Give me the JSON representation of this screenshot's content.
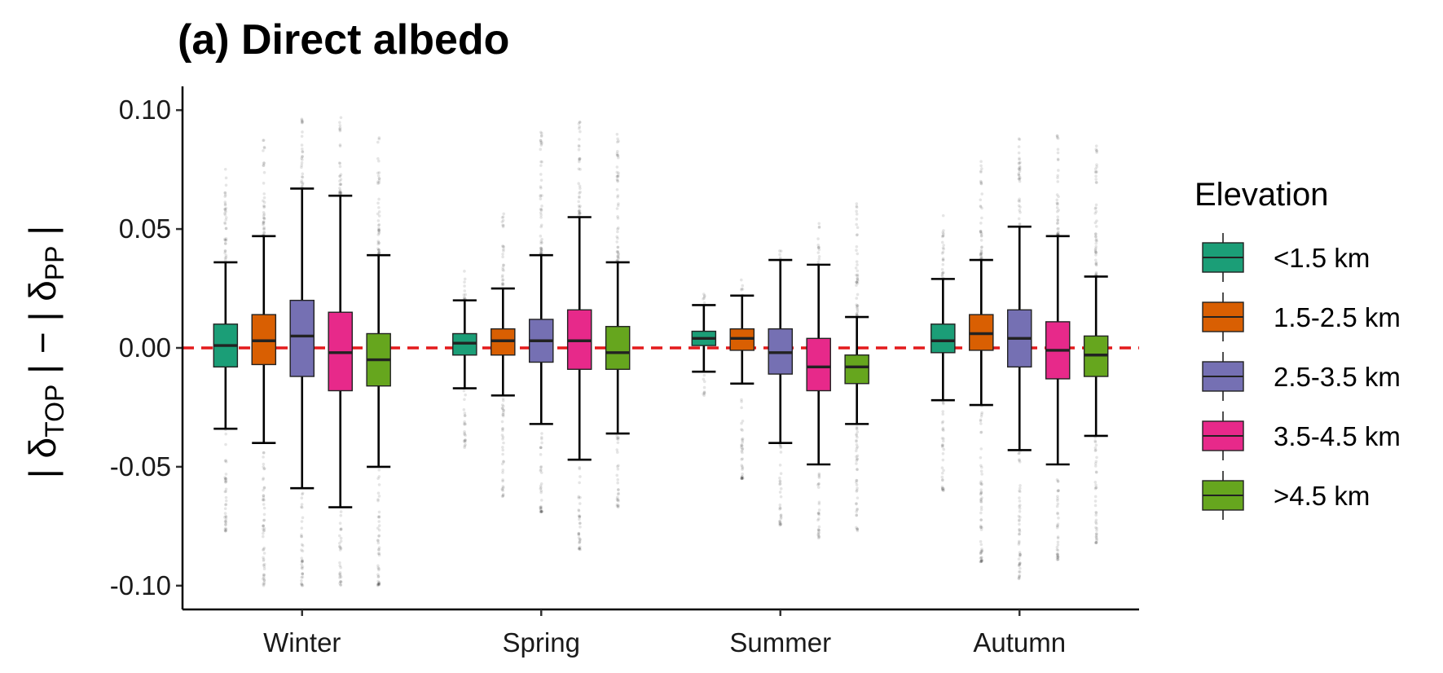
{
  "chart_data": {
    "type": "boxplot",
    "title": "(a) Direct albedo",
    "ylabel": {
      "prefix": "| δ",
      "sub1": "TOP",
      "middle": " | − | δ",
      "sub2": "PP",
      "suffix": " |"
    },
    "xlabel": "",
    "ylim": [
      -0.11,
      0.11
    ],
    "y_ticks": [
      -0.1,
      -0.05,
      0.0,
      0.05,
      0.1
    ],
    "y_tick_labels": [
      "-0.10",
      "-0.05",
      "0.00",
      "0.05",
      "0.10"
    ],
    "reference_line": {
      "y": 0,
      "color": "#e31a1c",
      "style": "dashed"
    },
    "categories": [
      "Winter",
      "Spring",
      "Summer",
      "Autumn"
    ],
    "legend": {
      "title": "Elevation",
      "position": "right"
    },
    "series": [
      {
        "name": "<1.5 km",
        "color": "#1b9e77",
        "boxes": [
          {
            "lower_whisker": -0.034,
            "q1": -0.008,
            "median": 0.001,
            "q3": 0.01,
            "upper_whisker": 0.036,
            "outlier_min": -0.077,
            "outlier_max": 0.077
          },
          {
            "lower_whisker": -0.017,
            "q1": -0.003,
            "median": 0.002,
            "q3": 0.006,
            "upper_whisker": 0.02,
            "outlier_min": -0.042,
            "outlier_max": 0.034
          },
          {
            "lower_whisker": -0.01,
            "q1": 0.001,
            "median": 0.004,
            "q3": 0.007,
            "upper_whisker": 0.018,
            "outlier_min": -0.02,
            "outlier_max": 0.025
          },
          {
            "lower_whisker": -0.022,
            "q1": -0.002,
            "median": 0.003,
            "q3": 0.01,
            "upper_whisker": 0.029,
            "outlier_min": -0.06,
            "outlier_max": 0.057
          }
        ]
      },
      {
        "name": "1.5-2.5 km",
        "color": "#d95f02",
        "boxes": [
          {
            "lower_whisker": -0.04,
            "q1": -0.007,
            "median": 0.003,
            "q3": 0.014,
            "upper_whisker": 0.047,
            "outlier_min": -0.1,
            "outlier_max": 0.09
          },
          {
            "lower_whisker": -0.02,
            "q1": -0.003,
            "median": 0.003,
            "q3": 0.008,
            "upper_whisker": 0.025,
            "outlier_min": -0.063,
            "outlier_max": 0.057
          },
          {
            "lower_whisker": -0.015,
            "q1": -0.001,
            "median": 0.004,
            "q3": 0.008,
            "upper_whisker": 0.022,
            "outlier_min": -0.055,
            "outlier_max": 0.03
          },
          {
            "lower_whisker": -0.024,
            "q1": -0.001,
            "median": 0.006,
            "q3": 0.014,
            "upper_whisker": 0.037,
            "outlier_min": -0.09,
            "outlier_max": 0.08
          }
        ]
      },
      {
        "name": "2.5-3.5 km",
        "color": "#7570b3",
        "boxes": [
          {
            "lower_whisker": -0.059,
            "q1": -0.012,
            "median": 0.005,
            "q3": 0.02,
            "upper_whisker": 0.067,
            "outlier_min": -0.1,
            "outlier_max": 0.1
          },
          {
            "lower_whisker": -0.032,
            "q1": -0.006,
            "median": 0.003,
            "q3": 0.012,
            "upper_whisker": 0.039,
            "outlier_min": -0.069,
            "outlier_max": 0.094
          },
          {
            "lower_whisker": -0.04,
            "q1": -0.011,
            "median": -0.002,
            "q3": 0.008,
            "upper_whisker": 0.037,
            "outlier_min": -0.075,
            "outlier_max": 0.042
          },
          {
            "lower_whisker": -0.043,
            "q1": -0.008,
            "median": 0.004,
            "q3": 0.016,
            "upper_whisker": 0.051,
            "outlier_min": -0.097,
            "outlier_max": 0.088
          }
        ]
      },
      {
        "name": "3.5-4.5 km",
        "color": "#e7298a",
        "boxes": [
          {
            "lower_whisker": -0.067,
            "q1": -0.018,
            "median": -0.002,
            "q3": 0.015,
            "upper_whisker": 0.064,
            "outlier_min": -0.1,
            "outlier_max": 0.098
          },
          {
            "lower_whisker": -0.047,
            "q1": -0.009,
            "median": 0.003,
            "q3": 0.016,
            "upper_whisker": 0.055,
            "outlier_min": -0.085,
            "outlier_max": 0.097
          },
          {
            "lower_whisker": -0.049,
            "q1": -0.018,
            "median": -0.008,
            "q3": 0.004,
            "upper_whisker": 0.035,
            "outlier_min": -0.08,
            "outlier_max": 0.053
          },
          {
            "lower_whisker": -0.049,
            "q1": -0.013,
            "median": -0.001,
            "q3": 0.011,
            "upper_whisker": 0.047,
            "outlier_min": -0.089,
            "outlier_max": 0.09
          }
        ]
      },
      {
        "name": ">4.5 km",
        "color": "#66a61e",
        "boxes": [
          {
            "lower_whisker": -0.05,
            "q1": -0.016,
            "median": -0.005,
            "q3": 0.006,
            "upper_whisker": 0.039,
            "outlier_min": -0.1,
            "outlier_max": 0.09
          },
          {
            "lower_whisker": -0.036,
            "q1": -0.009,
            "median": -0.002,
            "q3": 0.009,
            "upper_whisker": 0.036,
            "outlier_min": -0.067,
            "outlier_max": 0.091
          },
          {
            "lower_whisker": -0.032,
            "q1": -0.015,
            "median": -0.008,
            "q3": -0.003,
            "upper_whisker": 0.013,
            "outlier_min": -0.077,
            "outlier_max": 0.061
          },
          {
            "lower_whisker": -0.037,
            "q1": -0.012,
            "median": -0.003,
            "q3": 0.005,
            "upper_whisker": 0.03,
            "outlier_min": -0.082,
            "outlier_max": 0.087
          }
        ]
      }
    ]
  }
}
